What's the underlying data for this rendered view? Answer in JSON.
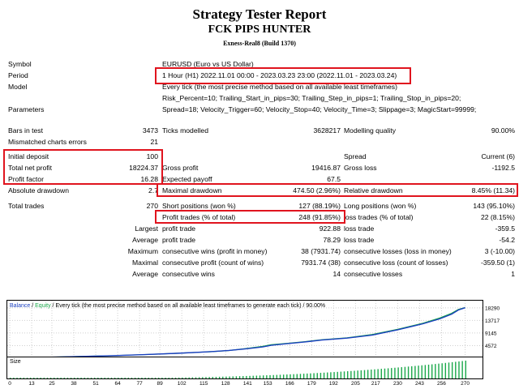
{
  "header": {
    "title": "Strategy Tester Report",
    "ea_name": "FCK PIPS HUNTER",
    "server": "Exness-Real8 (Build 1370)"
  },
  "info": {
    "symbol_label": "Symbol",
    "symbol_value": "EURUSD (Euro vs US Dollar)",
    "period_label": "Period",
    "period_value": "1 Hour (H1) 2022.11.01 00:00 - 2023.03.23 23:00 (2022.11.01 - 2023.03.24)",
    "model_label": "Model",
    "model_value": "Every tick (the most precise method based on all available least timeframes)",
    "parameters_label": "Parameters",
    "parameters_line1": "Risk_Percent=10; Trailing_Start_in_pips=30; Trailing_Step_in_pips=1; Trailing_Stop_in_pips=20;",
    "parameters_line2": "Spread=18; Velocity_Trigger=60; Velocity_Stop=40; Velocity_Time=3; Slippage=3; MagicStart=99999;"
  },
  "stats": {
    "bars_label": "Bars in test",
    "bars_value": "3473",
    "ticks_label": "Ticks modelled",
    "ticks_value": "3628217",
    "quality_label": "Modelling quality",
    "quality_value": "90.00%",
    "mismatch_label": "Mismatched charts errors",
    "mismatch_value": "21",
    "deposit_label": "Initial deposit",
    "deposit_value": "100",
    "spread_label": "Spread",
    "spread_value": "Current (6)",
    "netprofit_label": "Total net profit",
    "netprofit_value": "18224.37",
    "grossprofit_label": "Gross profit",
    "grossprofit_value": "19416.87",
    "grossloss_label": "Gross loss",
    "grossloss_value": "-1192.5",
    "pf_label": "Profit factor",
    "pf_value": "16.28",
    "payoff_label": "Expected payoff",
    "payoff_value": "67.5",
    "absdd_label": "Absolute drawdown",
    "absdd_value": "2.7",
    "maxdd_label": "Maximal drawdown",
    "maxdd_value": "474.50 (2.96%)",
    "reldd_label": "Relative drawdown",
    "reldd_value": "8.45% (11.34)",
    "trades_label": "Total trades",
    "trades_value": "270",
    "short_label": "Short positions (won %)",
    "short_value": "127 (88.19%)",
    "long_label": "Long positions (won %)",
    "long_value": "143 (95.10%)",
    "proftrades_label": "Profit trades (% of total)",
    "proftrades_value": "248 (91.85%)",
    "losstrades_label": "loss trades (% of total)",
    "losstrades_value": "22 (8.15%)",
    "largest_label": "Largest",
    "largest_profit_label": "profit trade",
    "largest_profit_value": "922.88",
    "largest_loss_label": "loss trade",
    "largest_loss_value": "-359.5",
    "average_label": "Average",
    "average_profit_label": "profit trade",
    "average_profit_value": "78.29",
    "average_loss_label": "loss trade",
    "average_loss_value": "-54.2",
    "maximum_label": "Maximum",
    "max_cw_label": "consecutive wins (profit in money)",
    "max_cw_value": "38 (7931.74)",
    "max_cl_label": "consecutive losses (loss in money)",
    "max_cl_value": "3 (-10.00)",
    "maximal_label": "Maximal",
    "maximal_cp_label": "consecutive profit (count of wins)",
    "maximal_cp_value": "7931.74 (38)",
    "maximal_cl_label": "consecutive loss (count of losses)",
    "maximal_cl_value": "-359.50 (1)",
    "avgcons_label": "Average",
    "avg_cw_label": "consecutive wins",
    "avg_cw_value": "14",
    "avg_cl_label": "consecutive losses",
    "avg_cl_value": "1"
  },
  "chart_legend": {
    "balance": "Balance",
    "sep": " / ",
    "equity": "Equity",
    "rest": " / Every tick (the most precise method based on all available least timeframes to generate each tick) / 90.00%",
    "size": "Size"
  },
  "colors": {
    "balance": "#1a3fbf",
    "equity": "#1aa84a",
    "highlight": "#e0141e"
  },
  "chart_data": {
    "type": "line",
    "y_ticks": [
      18290,
      13717,
      9145,
      4572
    ],
    "x_ticks": [
      0,
      13,
      25,
      38,
      51,
      64,
      77,
      89,
      102,
      115,
      128,
      141,
      153,
      166,
      179,
      192,
      205,
      217,
      230,
      243,
      256,
      270
    ],
    "series": [
      {
        "name": "Balance",
        "x": [
          0,
          20,
          40,
          60,
          80,
          100,
          120,
          130,
          140,
          150,
          155,
          165,
          175,
          185,
          200,
          215,
          230,
          245,
          255,
          262,
          266,
          270
        ],
        "values": [
          100,
          300,
          600,
          900,
          1300,
          1800,
          2400,
          2800,
          3400,
          4100,
          4700,
          5300,
          5900,
          6600,
          7300,
          8400,
          10300,
          12500,
          14300,
          16000,
          17500,
          18324
        ]
      },
      {
        "name": "Equity",
        "x": [
          0,
          20,
          40,
          60,
          80,
          100,
          120,
          130,
          140,
          150,
          155,
          165,
          175,
          185,
          200,
          215,
          230,
          245,
          255,
          262,
          266,
          270
        ],
        "values": [
          100,
          300,
          600,
          900,
          1300,
          1800,
          2400,
          2800,
          3500,
          4300,
          4900,
          5400,
          6000,
          6700,
          7400,
          8600,
          10500,
          12700,
          14600,
          16300,
          17700,
          18400
        ]
      }
    ],
    "ylim": [
      0,
      20000
    ],
    "xlim": [
      0,
      275
    ]
  }
}
